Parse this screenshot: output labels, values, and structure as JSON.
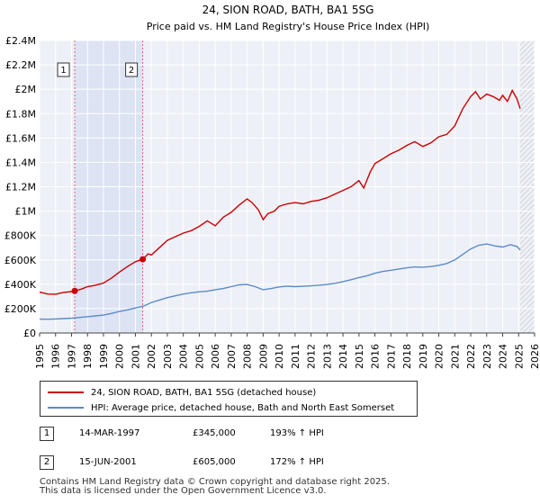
{
  "chart_data": {
    "type": "line",
    "title": "24, SION ROAD, BATH, BA1 5SG",
    "subtitle": "Price paid vs. HM Land Registry's House Price Index (HPI)",
    "xlim": [
      1995,
      2026
    ],
    "ylim": [
      0,
      2400000
    ],
    "x_ticks": [
      1995,
      1996,
      1997,
      1998,
      1999,
      2000,
      2001,
      2002,
      2003,
      2004,
      2005,
      2006,
      2007,
      2008,
      2009,
      2010,
      2011,
      2012,
      2013,
      2014,
      2015,
      2016,
      2017,
      2018,
      2019,
      2020,
      2021,
      2022,
      2023,
      2024,
      2025,
      2026
    ],
    "y_ticks": [
      {
        "value": 0,
        "label": "£0"
      },
      {
        "value": 200000,
        "label": "£200K"
      },
      {
        "value": 400000,
        "label": "£400K"
      },
      {
        "value": 600000,
        "label": "£600K"
      },
      {
        "value": 800000,
        "label": "£800K"
      },
      {
        "value": 1000000,
        "label": "£1M"
      },
      {
        "value": 1200000,
        "label": "£1.2M"
      },
      {
        "value": 1400000,
        "label": "£1.4M"
      },
      {
        "value": 1600000,
        "label": "£1.6M"
      },
      {
        "value": 1800000,
        "label": "£1.8M"
      },
      {
        "value": 2000000,
        "label": "£2M"
      },
      {
        "value": 2200000,
        "label": "£2.2M"
      },
      {
        "value": 2400000,
        "label": "£2.4M"
      }
    ],
    "shaded_span": [
      1997.2,
      2001.46
    ],
    "future_hatch_from": 2025.1,
    "series": [
      {
        "name": "24, SION ROAD, BATH, BA1 5SG (detached house)",
        "color": "#cc0000",
        "points": [
          [
            1995,
            335000
          ],
          [
            1995.5,
            320000
          ],
          [
            1996,
            318000
          ],
          [
            1996.5,
            333000
          ],
          [
            1997,
            340000
          ],
          [
            1997.2,
            345000
          ],
          [
            1997.6,
            360000
          ],
          [
            1998,
            380000
          ],
          [
            1998.5,
            392000
          ],
          [
            1999,
            410000
          ],
          [
            1999.5,
            450000
          ],
          [
            2000,
            500000
          ],
          [
            2000.5,
            545000
          ],
          [
            2001,
            585000
          ],
          [
            2001.46,
            605000
          ],
          [
            2001.8,
            650000
          ],
          [
            2002,
            640000
          ],
          [
            2002.5,
            700000
          ],
          [
            2003,
            760000
          ],
          [
            2003.5,
            790000
          ],
          [
            2004,
            820000
          ],
          [
            2004.5,
            840000
          ],
          [
            2005,
            875000
          ],
          [
            2005.5,
            920000
          ],
          [
            2006,
            880000
          ],
          [
            2006.5,
            950000
          ],
          [
            2007,
            990000
          ],
          [
            2007.5,
            1050000
          ],
          [
            2008,
            1100000
          ],
          [
            2008.3,
            1070000
          ],
          [
            2008.7,
            1010000
          ],
          [
            2009,
            930000
          ],
          [
            2009.3,
            980000
          ],
          [
            2009.7,
            1000000
          ],
          [
            2010,
            1040000
          ],
          [
            2010.5,
            1060000
          ],
          [
            2011,
            1070000
          ],
          [
            2011.5,
            1060000
          ],
          [
            2012,
            1080000
          ],
          [
            2012.5,
            1090000
          ],
          [
            2013,
            1110000
          ],
          [
            2013.5,
            1140000
          ],
          [
            2014,
            1170000
          ],
          [
            2014.5,
            1200000
          ],
          [
            2015,
            1250000
          ],
          [
            2015.3,
            1190000
          ],
          [
            2015.7,
            1320000
          ],
          [
            2016,
            1390000
          ],
          [
            2016.5,
            1430000
          ],
          [
            2017,
            1470000
          ],
          [
            2017.5,
            1500000
          ],
          [
            2018,
            1540000
          ],
          [
            2018.5,
            1570000
          ],
          [
            2019,
            1530000
          ],
          [
            2019.5,
            1560000
          ],
          [
            2020,
            1610000
          ],
          [
            2020.5,
            1630000
          ],
          [
            2021,
            1700000
          ],
          [
            2021.5,
            1840000
          ],
          [
            2022,
            1940000
          ],
          [
            2022.3,
            1980000
          ],
          [
            2022.6,
            1920000
          ],
          [
            2023,
            1960000
          ],
          [
            2023.4,
            1940000
          ],
          [
            2023.8,
            1910000
          ],
          [
            2024,
            1950000
          ],
          [
            2024.3,
            1900000
          ],
          [
            2024.6,
            1990000
          ],
          [
            2024.9,
            1920000
          ],
          [
            2025.1,
            1840000
          ]
        ]
      },
      {
        "name": "HPI: Average price, detached house, Bath and North East Somerset",
        "color": "#5b8cc8",
        "points": [
          [
            1995,
            114000
          ],
          [
            1995.5,
            113000
          ],
          [
            1996,
            115000
          ],
          [
            1996.5,
            118000
          ],
          [
            1997,
            122000
          ],
          [
            1997.5,
            128000
          ],
          [
            1998,
            134000
          ],
          [
            1998.5,
            140000
          ],
          [
            1999,
            147000
          ],
          [
            1999.5,
            160000
          ],
          [
            2000,
            177000
          ],
          [
            2000.5,
            190000
          ],
          [
            2001,
            205000
          ],
          [
            2001.5,
            220000
          ],
          [
            2002,
            250000
          ],
          [
            2002.5,
            270000
          ],
          [
            2003,
            290000
          ],
          [
            2003.5,
            305000
          ],
          [
            2004,
            320000
          ],
          [
            2004.5,
            330000
          ],
          [
            2005,
            338000
          ],
          [
            2005.5,
            343000
          ],
          [
            2006,
            355000
          ],
          [
            2006.5,
            365000
          ],
          [
            2007,
            380000
          ],
          [
            2007.5,
            395000
          ],
          [
            2008,
            398000
          ],
          [
            2008.5,
            380000
          ],
          [
            2009,
            355000
          ],
          [
            2009.5,
            365000
          ],
          [
            2010,
            378000
          ],
          [
            2010.5,
            385000
          ],
          [
            2011,
            380000
          ],
          [
            2011.5,
            383000
          ],
          [
            2012,
            387000
          ],
          [
            2012.5,
            392000
          ],
          [
            2013,
            398000
          ],
          [
            2013.5,
            408000
          ],
          [
            2014,
            422000
          ],
          [
            2014.5,
            437000
          ],
          [
            2015,
            455000
          ],
          [
            2015.5,
            470000
          ],
          [
            2016,
            490000
          ],
          [
            2016.5,
            505000
          ],
          [
            2017,
            515000
          ],
          [
            2017.5,
            525000
          ],
          [
            2018,
            535000
          ],
          [
            2018.5,
            542000
          ],
          [
            2019,
            540000
          ],
          [
            2019.5,
            545000
          ],
          [
            2020,
            555000
          ],
          [
            2020.5,
            570000
          ],
          [
            2021,
            600000
          ],
          [
            2021.5,
            645000
          ],
          [
            2022,
            690000
          ],
          [
            2022.5,
            720000
          ],
          [
            2023,
            730000
          ],
          [
            2023.5,
            715000
          ],
          [
            2024,
            705000
          ],
          [
            2024.5,
            725000
          ],
          [
            2024.9,
            710000
          ],
          [
            2025.1,
            680000
          ]
        ]
      }
    ],
    "sales": [
      {
        "id": "1",
        "x": 1997.2,
        "y": 345000
      },
      {
        "id": "2",
        "x": 2001.46,
        "y": 605000
      }
    ]
  },
  "legend": [
    {
      "label": "24, SION ROAD, BATH, BA1 5SG (detached house)",
      "color": "#cc0000"
    },
    {
      "label": "HPI: Average price, detached house, Bath and North East Somerset",
      "color": "#5b8cc8"
    }
  ],
  "sales_table": [
    {
      "num": "1",
      "date": "14-MAR-1997",
      "price": "£345,000",
      "hpi": "193% ↑ HPI"
    },
    {
      "num": "2",
      "date": "15-JUN-2001",
      "price": "£605,000",
      "hpi": "172% ↑ HPI"
    }
  ],
  "footer": {
    "line1": "Contains HM Land Registry data © Crown copyright and database right 2025.",
    "line2": "This data is licensed under the Open Government Licence v3.0."
  }
}
